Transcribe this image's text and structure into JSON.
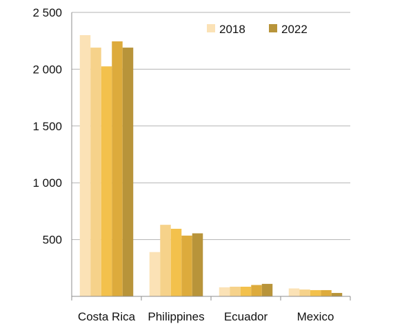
{
  "chart_data": {
    "type": "bar",
    "categories": [
      "Costa Rica",
      "Philippines",
      "Ecuador",
      "Mexico"
    ],
    "series": [
      {
        "name": "2018",
        "values": [
          2300,
          390,
          80,
          70
        ]
      },
      {
        "values": [
          2190,
          630,
          85,
          60
        ]
      },
      {
        "values": [
          2025,
          595,
          85,
          55
        ]
      },
      {
        "values": [
          2245,
          535,
          100,
          55
        ]
      },
      {
        "name": "2022",
        "values": [
          2190,
          555,
          110,
          30
        ]
      }
    ],
    "colors": [
      "#fbe2b6",
      "#f6d28a",
      "#f3c14c",
      "#ddab3c",
      "#b8943a"
    ],
    "y_ticks": [
      {
        "value": 500,
        "label": "500"
      },
      {
        "value": 1000,
        "label": "1 000"
      },
      {
        "value": 1500,
        "label": "1 500"
      },
      {
        "value": 2000,
        "label": "2 000"
      },
      {
        "value": 2500,
        "label": "2 500"
      }
    ],
    "ylim": [
      0,
      2500
    ],
    "grid": true,
    "legend": {
      "position": "top-right",
      "entries": [
        "2018",
        "2022"
      ]
    }
  }
}
